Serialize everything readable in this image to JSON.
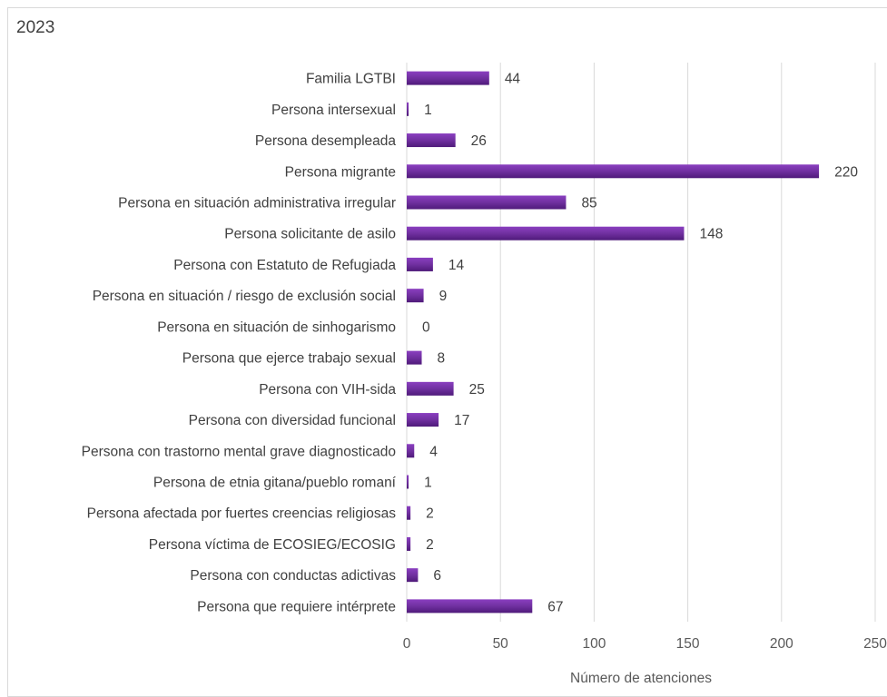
{
  "chart_data": {
    "type": "bar",
    "orientation": "horizontal",
    "title": "2023",
    "xlabel": "Número de atenciones",
    "ylabel": "",
    "xlim": [
      0,
      250
    ],
    "xticks": [
      0,
      50,
      100,
      150,
      200,
      250
    ],
    "grid": true,
    "bar_color": "#7030a0",
    "bar_color_dark": "#5b1f8a",
    "categories": [
      "Familia LGTBI",
      "Persona intersexual",
      "Persona desempleada",
      "Persona migrante",
      "Persona en situación administrativa irregular",
      "Persona solicitante de asilo",
      "Persona con Estatuto de Refugiada",
      "Persona en situación / riesgo de exclusión social",
      "Persona en situación de sinhogarismo",
      "Persona que ejerce trabajo sexual",
      "Persona con VIH-sida",
      "Persona con diversidad funcional",
      "Persona con trastorno mental grave diagnosticado",
      "Persona de etnia gitana/pueblo romaní",
      "Persona afectada por fuertes creencias religiosas",
      "Persona víctima de ECOSIEG/ECOSIG",
      "Persona con conductas adictivas",
      "Persona que requiere intérprete"
    ],
    "values": [
      44,
      1,
      26,
      220,
      85,
      148,
      14,
      9,
      0,
      8,
      25,
      17,
      4,
      1,
      2,
      2,
      6,
      67
    ]
  }
}
